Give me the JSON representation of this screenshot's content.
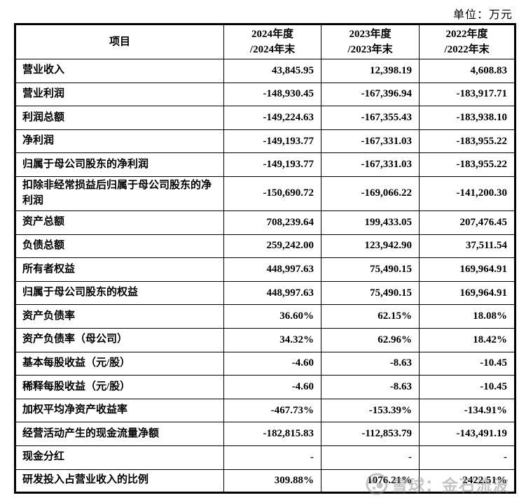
{
  "page": {
    "unit_label": "单位：万元"
  },
  "colors": {
    "border": "#000000",
    "text": "#000000",
    "watermark": "#8a8a8a",
    "background": "#ffffff"
  },
  "table": {
    "header": {
      "item_label": "项目",
      "periods": [
        {
          "line1": "2024年度",
          "line2": "/2024年末"
        },
        {
          "line1": "2023年度",
          "line2": "/2023年末"
        },
        {
          "line1": "2022年度",
          "line2": "/2022年末"
        }
      ]
    },
    "rows": [
      {
        "label": "营业收入",
        "values": [
          "43,845.95",
          "12,398.19",
          "4,608.83"
        ],
        "tall": false
      },
      {
        "label": "营业利润",
        "values": [
          "-148,930.45",
          "-167,396.94",
          "-183,917.71"
        ],
        "tall": false
      },
      {
        "label": "利润总额",
        "values": [
          "-149,224.63",
          "-167,355.43",
          "-183,938.10"
        ],
        "tall": false
      },
      {
        "label": "净利润",
        "values": [
          "-149,193.77",
          "-167,331.03",
          "-183,955.22"
        ],
        "tall": false
      },
      {
        "label": "归属于母公司股东的净利润",
        "values": [
          "-149,193.77",
          "-167,331.03",
          "-183,955.22"
        ],
        "tall": false
      },
      {
        "label": "扣除非经常损益后归属于母公司股东的净利润",
        "values": [
          "-150,690.72",
          "-169,066.22",
          "-141,200.30"
        ],
        "tall": true
      },
      {
        "label": "资产总额",
        "values": [
          "708,239.64",
          "199,433.05",
          "207,476.45"
        ],
        "tall": false
      },
      {
        "label": "负债总额",
        "values": [
          "259,242.00",
          "123,942.90",
          "37,511.54"
        ],
        "tall": false
      },
      {
        "label": "所有者权益",
        "values": [
          "448,997.63",
          "75,490.15",
          "169,964.91"
        ],
        "tall": false
      },
      {
        "label": "归属于母公司股东的权益",
        "values": [
          "448,997.63",
          "75,490.15",
          "169,964.91"
        ],
        "tall": false
      },
      {
        "label": "资产负债率",
        "values": [
          "36.60%",
          "62.15%",
          "18.08%"
        ],
        "tall": false
      },
      {
        "label": "资产负债率（母公司）",
        "values": [
          "34.32%",
          "62.96%",
          "18.42%"
        ],
        "tall": false
      },
      {
        "label": "基本每股收益（元/股）",
        "values": [
          "-4.60",
          "-8.63",
          "-10.45"
        ],
        "tall": false
      },
      {
        "label": "稀释每股收益（元/股）",
        "values": [
          "-4.60",
          "-8.63",
          "-10.45"
        ],
        "tall": false
      },
      {
        "label": "加权平均净资产收益率",
        "values": [
          "-467.73%",
          "-153.39%",
          "-134.91%"
        ],
        "tall": false
      },
      {
        "label": "经营活动产生的现金流量净额",
        "values": [
          "-182,815.83",
          "-112,853.79",
          "-143,491.19"
        ],
        "tall": false
      },
      {
        "label": "现金分红",
        "values": [
          "-",
          "-",
          "-"
        ],
        "tall": false
      },
      {
        "label": "研发投入占营业收入的比例",
        "values": [
          "309.88%",
          "1076.21%",
          "2422.51%"
        ],
        "tall": false
      }
    ]
  },
  "watermark": {
    "logo": "snowball-logo",
    "text": "雪球：金石流波"
  }
}
